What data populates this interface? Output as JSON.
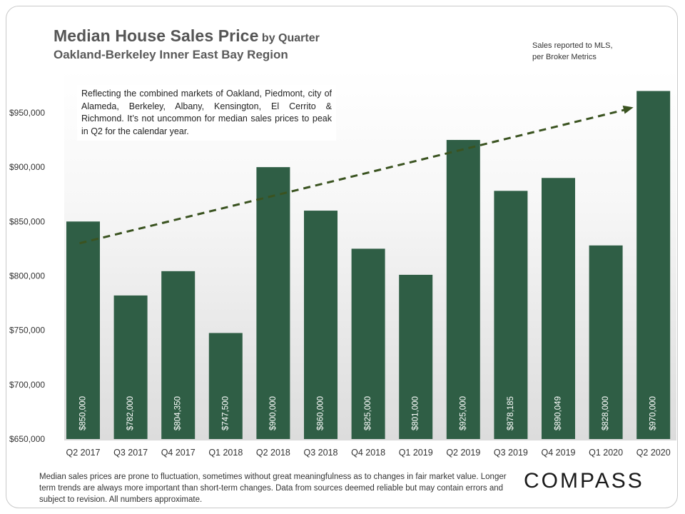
{
  "header": {
    "title": "Median House Sales Price",
    "title_suffix": "by Quarter",
    "subtitle": "Oakland-Berkeley  Inner East Bay Region"
  },
  "source_note": {
    "line1": "Sales reported to MLS,",
    "line2": "per Broker Metrics"
  },
  "annotation": "Reflecting the combined markets of Oakland, Piedmont, city of Alameda, Berkeley, Albany, Kensington, El Cerrito & Richmond. It’s not uncommon for median sales prices to peak in Q2 for the calendar year.",
  "footnote": "Median sales prices are prone to fluctuation, sometimes without great meaningfulness as to changes in fair market value. Longer term trends are always more important than short-term changes. Data from sources deemed reliable but may contain errors and subject to revision. All numbers approximate.",
  "brand": "COMPASS",
  "colors": {
    "bar": "#2f5e45",
    "trend": "#3a5320",
    "label": "#ffffff",
    "axis_text": "#333333"
  },
  "chart_data": {
    "type": "bar",
    "title": "Median House Sales Price by Quarter",
    "subtitle": "Oakland-Berkeley  Inner East Bay Region",
    "xlabel": "",
    "ylabel": "",
    "categories": [
      "Q2 2017",
      "Q3 2017",
      "Q4 2017",
      "Q1 2018",
      "Q2 2018",
      "Q3 2018",
      "Q4 2018",
      "Q1 2019",
      "Q2 2019",
      "Q3 2019",
      "Q4 2019",
      "Q1 2020",
      "Q2 2020"
    ],
    "values": [
      850000,
      782000,
      804350,
      747500,
      900000,
      860000,
      825000,
      801000,
      925000,
      878185,
      890049,
      828000,
      970000
    ],
    "data_labels": [
      "$850,000",
      "$782,000",
      "$804,350",
      "$747,500",
      "$900,000",
      "$860,000",
      "$825,000",
      "$801,000",
      "$925,000",
      "$878,185",
      "$890,049",
      "$828,000",
      "$970,000"
    ],
    "ylim": [
      650000,
      990000
    ],
    "yticks": [
      650000,
      700000,
      750000,
      800000,
      850000,
      900000,
      950000
    ],
    "ytick_labels": [
      "$650,000",
      "$700,000",
      "$750,000",
      "$800,000",
      "$850,000",
      "$900,000",
      "$950,000"
    ],
    "trendline": {
      "style": "dashed-arrow",
      "from": {
        "category": "Q2 2017",
        "value": 830000
      },
      "to": {
        "category": "Q2 2020",
        "value": 955000
      }
    },
    "grid": false,
    "legend": "none"
  }
}
